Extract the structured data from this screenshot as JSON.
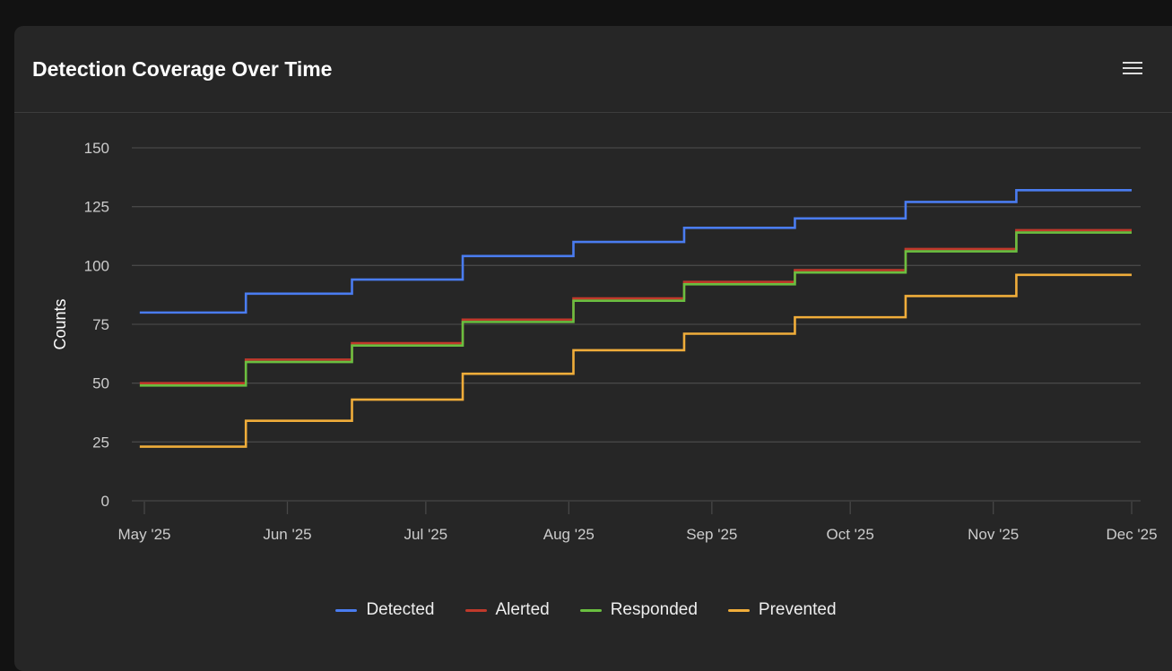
{
  "card": {
    "title": "Detection Coverage Over Time",
    "menu_icon": "hamburger-icon"
  },
  "chart_data": {
    "type": "line",
    "step": true,
    "title": "Detection Coverage Over Time",
    "xlabel": "",
    "ylabel": "Counts",
    "ylim": [
      0,
      150
    ],
    "yticks": [
      0,
      25,
      50,
      75,
      100,
      125,
      150
    ],
    "xticks": [
      {
        "date": "2025-05-01",
        "label": "May '25"
      },
      {
        "date": "2025-06-01",
        "label": "Jun '25"
      },
      {
        "date": "2025-07-01",
        "label": "Jul '25"
      },
      {
        "date": "2025-08-01",
        "label": "Aug '25"
      },
      {
        "date": "2025-09-01",
        "label": "Sep '25"
      },
      {
        "date": "2025-10-01",
        "label": "Oct '25"
      },
      {
        "date": "2025-11-01",
        "label": "Nov '25"
      },
      {
        "date": "2025-12-01",
        "label": "Dec '25"
      }
    ],
    "x": [
      "2025-04-30",
      "2025-05-23",
      "2025-06-15",
      "2025-07-09",
      "2025-08-02",
      "2025-08-26",
      "2025-09-19",
      "2025-10-13",
      "2025-11-06",
      "2025-12-01"
    ],
    "grid": true,
    "legend": "bottom-center",
    "series": [
      {
        "name": "Detected",
        "color": "#4a7cf0",
        "values": [
          80,
          88,
          94,
          104,
          110,
          116,
          120,
          127,
          132,
          132
        ]
      },
      {
        "name": "Alerted",
        "color": "#c0392b",
        "values": [
          50,
          60,
          67,
          77,
          86,
          93,
          98,
          107,
          115,
          115
        ]
      },
      {
        "name": "Responded",
        "color": "#6abf40",
        "values": [
          49,
          59,
          66,
          76,
          85,
          92,
          97,
          106,
          114,
          114
        ]
      },
      {
        "name": "Prevented",
        "color": "#f0ad3a",
        "values": [
          23,
          34,
          43,
          54,
          64,
          71,
          78,
          87,
          96,
          96
        ]
      }
    ]
  }
}
